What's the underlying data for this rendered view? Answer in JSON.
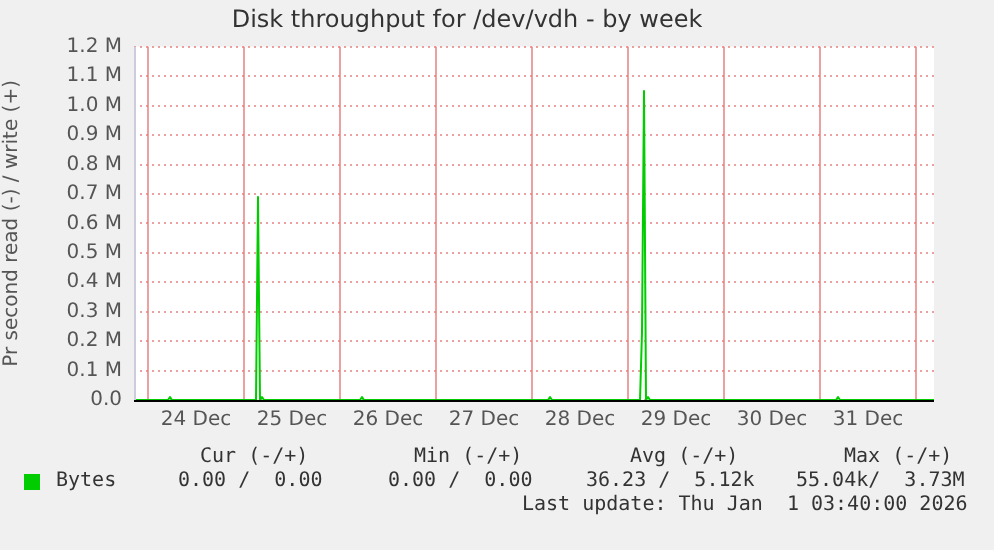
{
  "chart_data": {
    "type": "line",
    "title": "Disk throughput for /dev/vdh - by week",
    "ylabel": "Pr second read (-) / write (+)",
    "xlim": [
      "2025-12-23T20:30",
      "2026-01-01T04:30"
    ],
    "xticks": [
      {
        "value": "2025-12-24T00:00",
        "label": null
      },
      {
        "value": "2025-12-24T12:00",
        "label": "24 Dec"
      },
      {
        "value": "2025-12-25T00:00",
        "label": null
      },
      {
        "value": "2025-12-25T12:00",
        "label": "25 Dec"
      },
      {
        "value": "2025-12-26T00:00",
        "label": null
      },
      {
        "value": "2025-12-26T12:00",
        "label": "26 Dec"
      },
      {
        "value": "2025-12-27T00:00",
        "label": null
      },
      {
        "value": "2025-12-27T12:00",
        "label": "27 Dec"
      },
      {
        "value": "2025-12-28T00:00",
        "label": null
      },
      {
        "value": "2025-12-28T12:00",
        "label": "28 Dec"
      },
      {
        "value": "2025-12-29T00:00",
        "label": null
      },
      {
        "value": "2025-12-29T12:00",
        "label": "29 Dec"
      },
      {
        "value": "2025-12-30T00:00",
        "label": null
      },
      {
        "value": "2025-12-30T12:00",
        "label": "30 Dec"
      },
      {
        "value": "2025-12-31T00:00",
        "label": null
      },
      {
        "value": "2025-12-31T12:00",
        "label": "31 Dec"
      },
      {
        "value": "2026-01-01T00:00",
        "label": null
      }
    ],
    "ylim": [
      0,
      1200000
    ],
    "yticks": [
      {
        "value": 0,
        "label": "0.0"
      },
      {
        "value": 100000,
        "label": "0.1 M"
      },
      {
        "value": 200000,
        "label": "0.2 M"
      },
      {
        "value": 300000,
        "label": "0.3 M"
      },
      {
        "value": 400000,
        "label": "0.4 M"
      },
      {
        "value": 500000,
        "label": "0.5 M"
      },
      {
        "value": 600000,
        "label": "0.6 M"
      },
      {
        "value": 700000,
        "label": "0.7 M"
      },
      {
        "value": 800000,
        "label": "0.8 M"
      },
      {
        "value": 900000,
        "label": "0.9 M"
      },
      {
        "value": 1000000,
        "label": "1.0 M"
      },
      {
        "value": 1100000,
        "label": "1.1 M"
      },
      {
        "value": 1200000,
        "label": "1.2 M"
      }
    ],
    "grid": true,
    "legend": "bottom left",
    "marker": "none",
    "line_style": "solid",
    "series": [
      {
        "name": "Bytes",
        "color": "#00cc00",
        "x": [
          "2025-12-23T20:30",
          "2025-12-24T05:00",
          "2025-12-24T05:30",
          "2025-12-24T06:00",
          "2025-12-25T03:00",
          "2025-12-25T03:30",
          "2025-12-25T04:00",
          "2025-12-25T04:30",
          "2025-12-25T05:00",
          "2025-12-26T05:00",
          "2025-12-26T05:30",
          "2025-12-26T06:00",
          "2025-12-28T04:00",
          "2025-12-28T04:30",
          "2025-12-28T05:00",
          "2025-12-29T03:00",
          "2025-12-29T03:30",
          "2025-12-29T04:00",
          "2025-12-29T04:30",
          "2025-12-29T05:00",
          "2025-12-29T05:30",
          "2025-12-31T04:00",
          "2025-12-31T04:30",
          "2025-12-31T05:00",
          "2026-01-01T04:30"
        ],
        "values": [
          0,
          0,
          10000,
          0,
          0,
          690000,
          0,
          10000,
          0,
          0,
          10000,
          0,
          0,
          10000,
          0,
          0,
          230000,
          1050000,
          0,
          10000,
          0,
          0,
          10000,
          0,
          0
        ]
      }
    ],
    "annotations": [
      "Cur (-/+)",
      "Min (-/+)",
      "Avg (-/+)",
      "Max (-/+)",
      "0.00 /  0.00",
      "0.00 /  0.00",
      "36.23 /  5.12k",
      "55.04k/  3.73M",
      "Last update: Thu Jan  1 03:40:00 2026"
    ]
  }
}
